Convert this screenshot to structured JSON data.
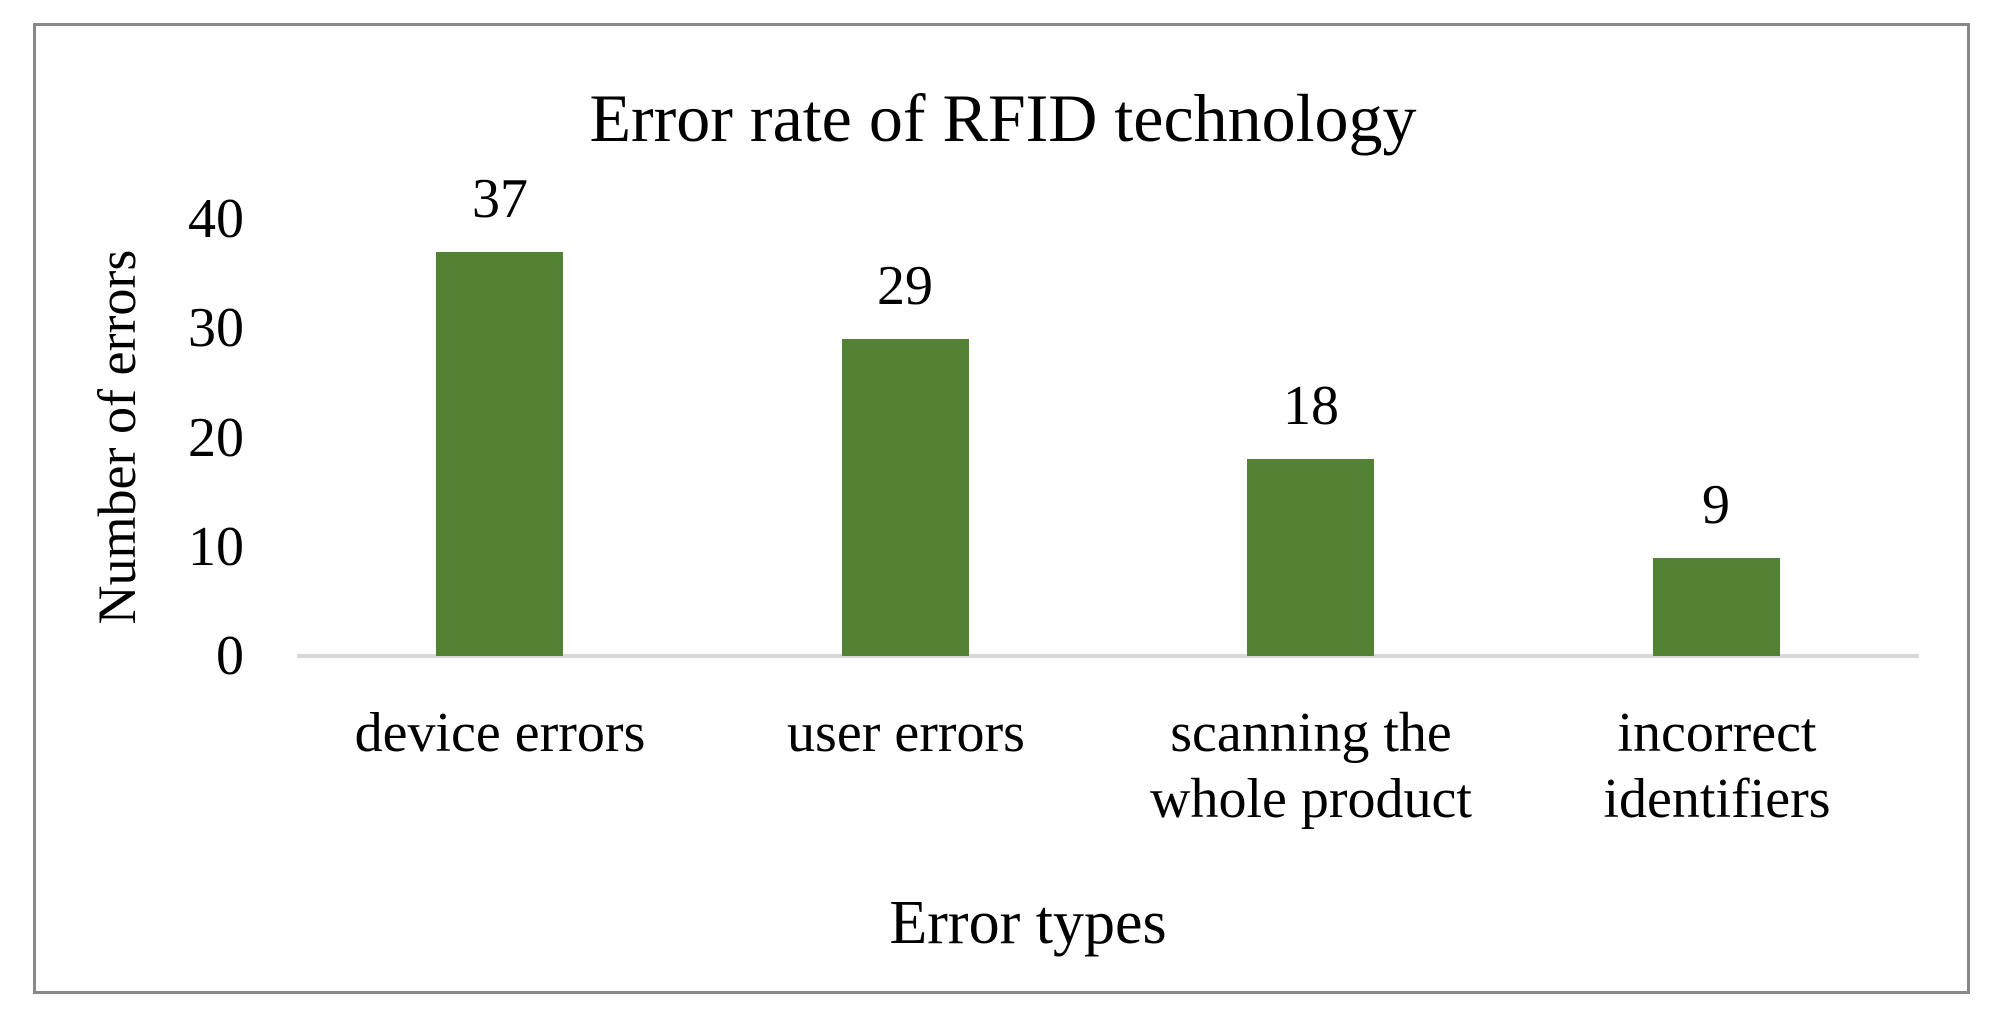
{
  "chart_data": {
    "type": "bar",
    "title": "Error rate of RFID technology",
    "xlabel": "Error types",
    "ylabel": "Number of errors",
    "categories": [
      {
        "label": "device errors",
        "lines": [
          "device errors"
        ]
      },
      {
        "label": "user errors",
        "lines": [
          "user errors"
        ]
      },
      {
        "label": "scanning the whole product",
        "lines": [
          "scanning the",
          "whole product"
        ]
      },
      {
        "label": "incorrect identifiers",
        "lines": [
          "incorrect",
          "identifiers"
        ]
      }
    ],
    "values": [
      37,
      29,
      18,
      9
    ],
    "data_labels": [
      "37",
      "29",
      "18",
      "9"
    ],
    "yticks": [
      0,
      10,
      20,
      30,
      40
    ],
    "ylim": [
      0,
      40
    ],
    "grid": false,
    "legend": null,
    "data_labels_shown": true,
    "colors": {
      "bar": "#548235",
      "axis_line": "#D9D9D9",
      "frame_border": "#888888",
      "text": "#000000"
    }
  }
}
